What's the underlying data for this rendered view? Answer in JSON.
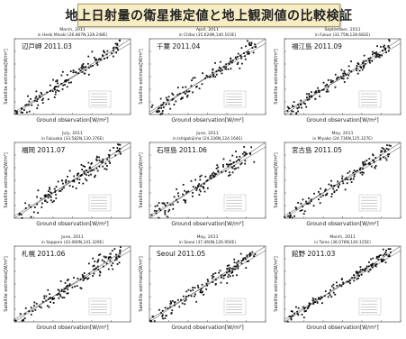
{
  "header": {
    "title": "地上日射量の衛星推定値と地上観測値の比較検証"
  },
  "colors": {
    "banner_bg": "#f6edc4",
    "banner_border": "#a99a55",
    "points": "#111111",
    "lines": "#555555"
  },
  "axis_text": {
    "xlabel": "Ground observation[W/m²]",
    "ylabel": "Satellite estimate[W/m²]"
  },
  "chart_data": [
    {
      "type": "scatter",
      "header1": "March, 2011",
      "header2": "in Hedo Misaki (26.867N,128.248E)",
      "label": "辺戸岬 2011.03",
      "xlim": [
        0,
        1200
      ],
      "ylim": [
        0,
        1200
      ],
      "seed": 11,
      "spread": 140,
      "points": 130
    },
    {
      "type": "scatter",
      "header1": "April, 2011",
      "header2": "in Chiba (35.624N,140.103E)",
      "label": "千葉 2011.04",
      "xlim": [
        0,
        1200
      ],
      "ylim": [
        0,
        1200
      ],
      "seed": 23,
      "spread": 150,
      "points": 130
    },
    {
      "type": "scatter",
      "header1": "September, 2011",
      "header2": "in Fukue (32.75N,128.682E)",
      "label": "福江島 2011.09",
      "xlim": [
        0,
        1200
      ],
      "ylim": [
        0,
        1200
      ],
      "seed": 37,
      "spread": 110,
      "points": 140
    },
    {
      "type": "scatter",
      "header1": "July, 2011",
      "header2": "in Fukuoka (33.582N,130.376E)",
      "label": "福岡 2011.07",
      "xlim": [
        0,
        1200
      ],
      "ylim": [
        0,
        1200
      ],
      "seed": 41,
      "spread": 160,
      "points": 140
    },
    {
      "type": "scatter",
      "header1": "June, 2011",
      "header2": "in Ishigakijima (24.336N,124.164E)",
      "label": "石垣島 2011.06",
      "xlim": [
        0,
        1200
      ],
      "ylim": [
        0,
        1200
      ],
      "seed": 53,
      "spread": 170,
      "points": 130
    },
    {
      "type": "scatter",
      "header1": "May, 2011",
      "header2": "in Miyako (24.736N,125.327E)",
      "label": "宮古島 2011.05",
      "xlim": [
        0,
        1200
      ],
      "ylim": [
        0,
        1200
      ],
      "seed": 67,
      "spread": 130,
      "points": 130
    },
    {
      "type": "scatter",
      "header1": "June, 2011",
      "header2": "in Sapporo (43.060N,141.329E)",
      "label": "札幌 2011.06",
      "xlim": [
        0,
        1200
      ],
      "ylim": [
        0,
        1200
      ],
      "seed": 71,
      "spread": 150,
      "points": 140
    },
    {
      "type": "scatter",
      "header1": "May, 2011",
      "header2": "in Seoul (37.460N,126.950E)",
      "label": "Seoul 2011.05",
      "xlim": [
        0,
        1200
      ],
      "ylim": [
        0,
        1200
      ],
      "seed": 83,
      "spread": 140,
      "points": 130
    },
    {
      "type": "scatter",
      "header1": "March, 2011",
      "header2": "in Tomo (36.078N,140.125E)",
      "label": "館野 2011.03",
      "xlim": [
        0,
        1200
      ],
      "ylim": [
        0,
        1200
      ],
      "seed": 97,
      "spread": 100,
      "points": 140
    }
  ]
}
